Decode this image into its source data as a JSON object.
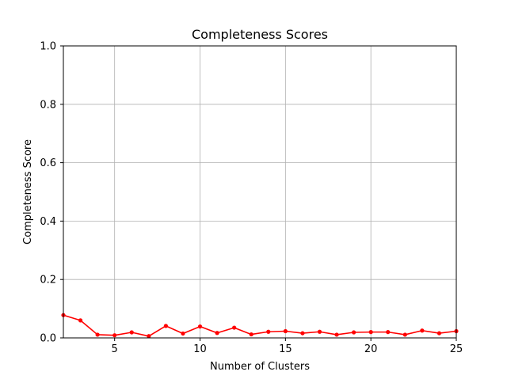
{
  "chart_data": {
    "type": "line",
    "title": "Completeness Scores",
    "xlabel": "Number of Clusters",
    "ylabel": "Completeness Score",
    "xlim": [
      2,
      25
    ],
    "ylim": [
      0,
      1.0
    ],
    "xticks": [
      5,
      10,
      15,
      20,
      25
    ],
    "xtick_labels": [
      "5",
      "10",
      "15",
      "20",
      "25"
    ],
    "yticks": [
      0,
      0.2,
      0.4,
      0.6,
      0.8,
      1.0
    ],
    "ytick_labels": [
      "0.0",
      "0.2",
      "0.4",
      "0.6",
      "0.8",
      "1.0"
    ],
    "grid": true,
    "legend": "none",
    "series": [
      {
        "color": "#ff0000",
        "marker": "circle",
        "x": [
          2,
          3,
          4,
          5,
          6,
          7,
          8,
          9,
          10,
          11,
          12,
          13,
          14,
          15,
          16,
          17,
          18,
          19,
          20,
          21,
          22,
          23,
          24,
          25
        ],
        "y": [
          0.078,
          0.06,
          0.011,
          0.009,
          0.019,
          0.006,
          0.041,
          0.015,
          0.039,
          0.017,
          0.035,
          0.012,
          0.021,
          0.023,
          0.016,
          0.021,
          0.011,
          0.019,
          0.02,
          0.02,
          0.011,
          0.025,
          0.016,
          0.023
        ]
      }
    ]
  }
}
